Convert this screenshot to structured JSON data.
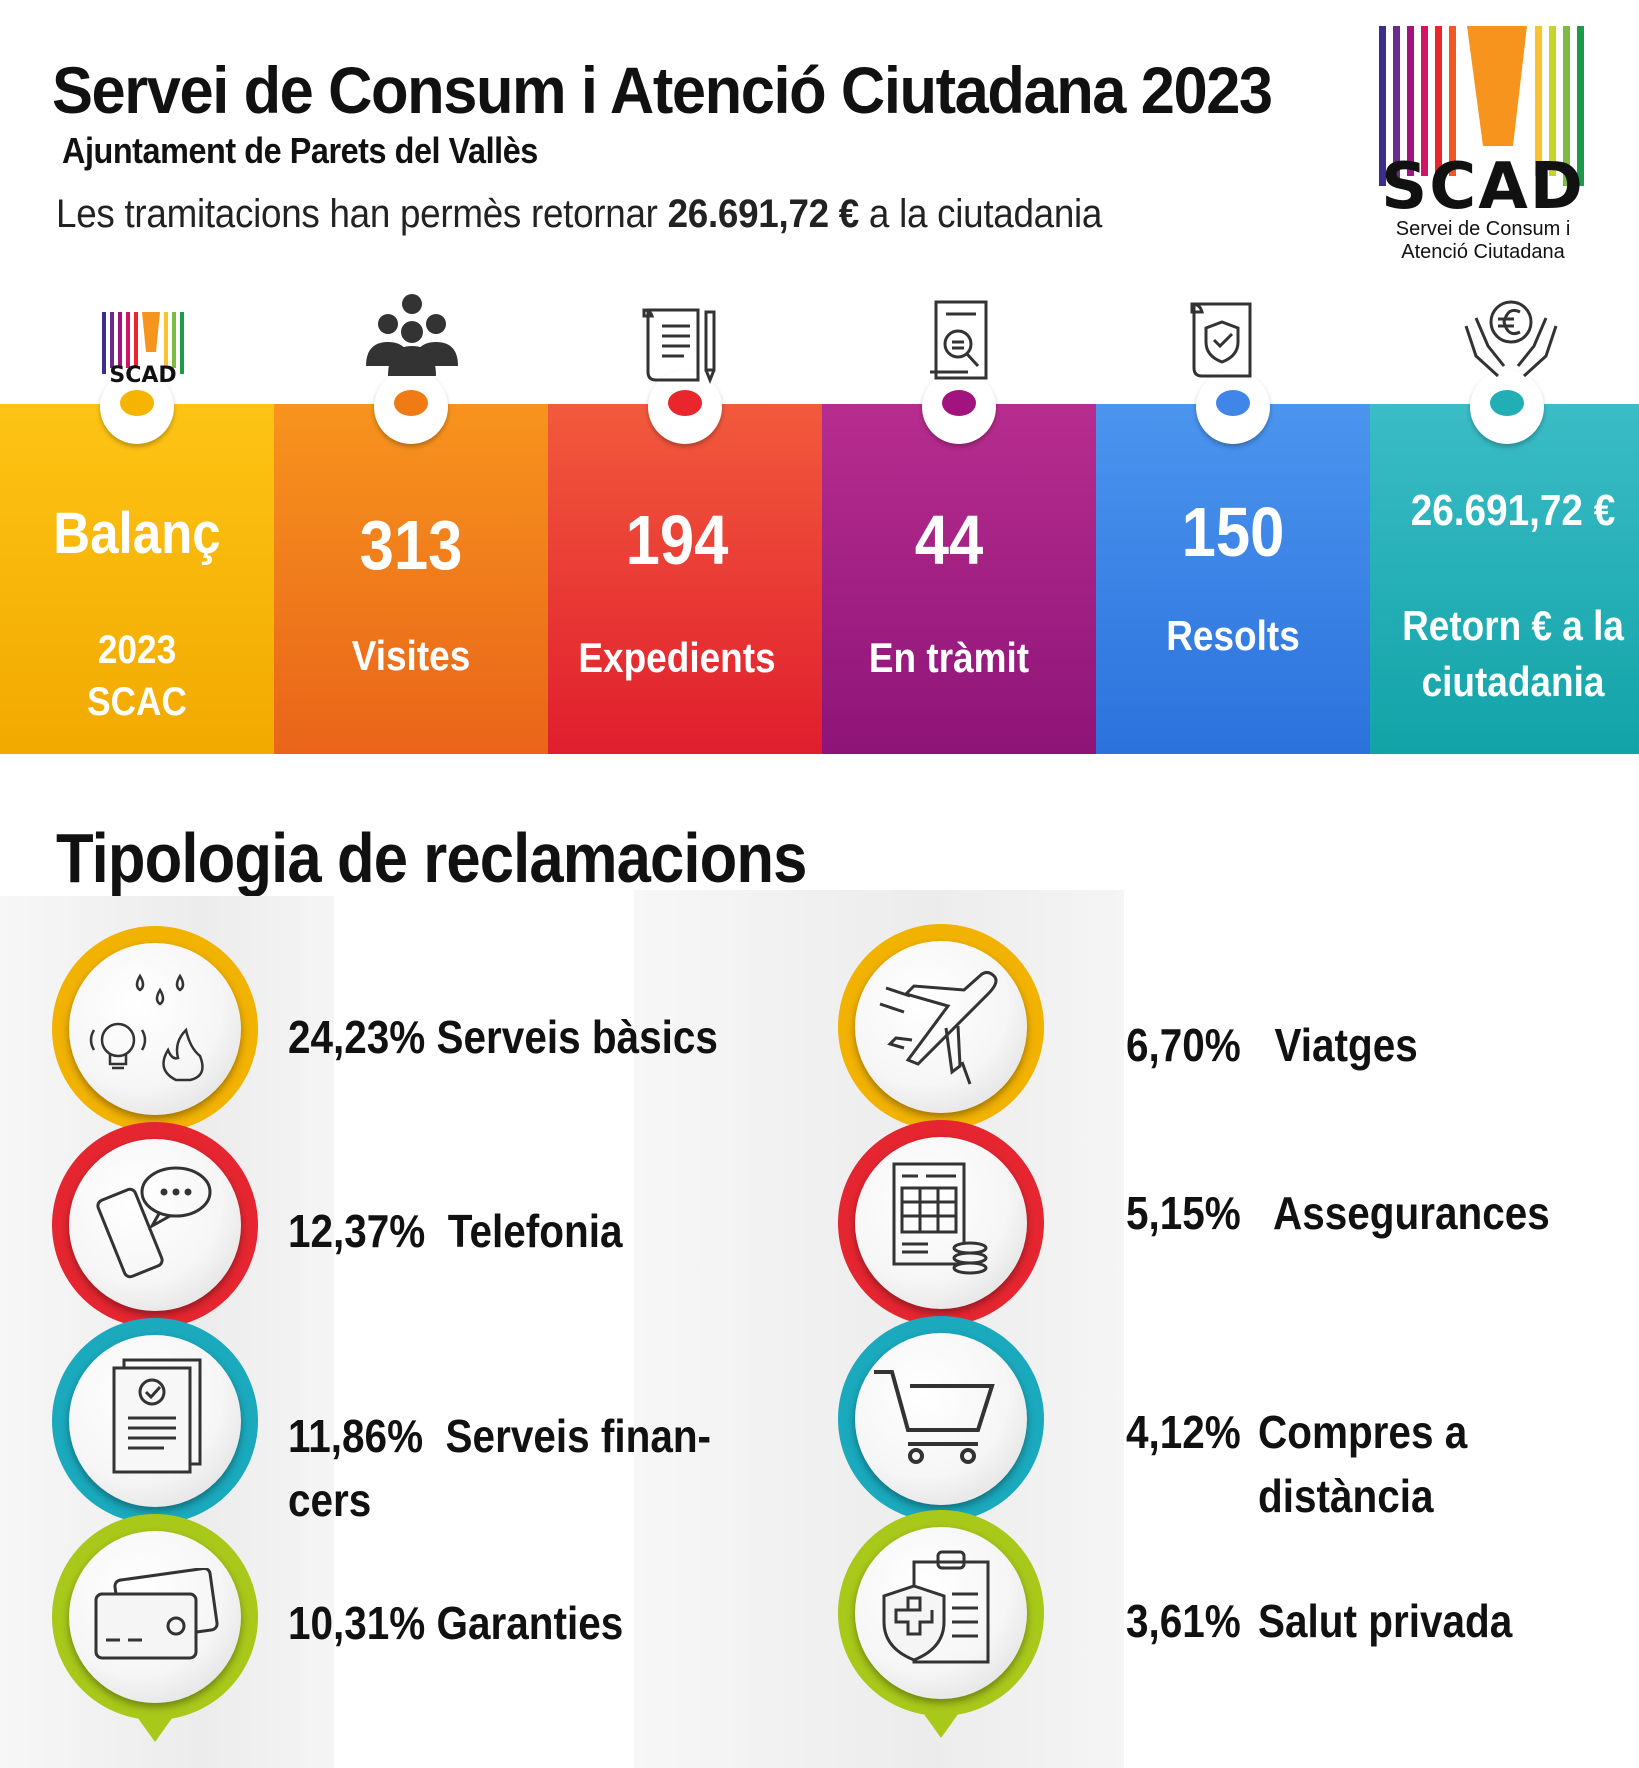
{
  "header": {
    "title": "Servei de Consum i Atenció Ciutadana 2023",
    "subtitle": "Ajuntament de Parets del Vallès",
    "summary_prefix": "Les tramitacions han permès retornar",
    "summary_amount": "26.691,72 €",
    "summary_suffix": "a la ciutadania"
  },
  "logo": {
    "text": "SCAD",
    "caption_line1": "Servei de Consum i",
    "caption_line2": "Atenció Ciutadana"
  },
  "stats": [
    {
      "value": "Balanç",
      "label_line1": "2023",
      "label_line2": "SCAC",
      "icon": "scad-logo-icon",
      "color": "#f4b400"
    },
    {
      "value": "313",
      "label_line1": "Visites",
      "label_line2": "",
      "icon": "people-icon",
      "color": "#f07a14"
    },
    {
      "value": "194",
      "label_line1": "Expedients",
      "label_line2": "",
      "icon": "document-pen-icon",
      "color": "#e8262c"
    },
    {
      "value": "44",
      "label_line1": "En tràmit",
      "label_line2": "",
      "icon": "document-search-icon",
      "color": "#a3137f"
    },
    {
      "value": "150",
      "label_line1": "Resolts",
      "label_line2": "",
      "icon": "document-shield-icon",
      "color": "#3f86e8"
    },
    {
      "value": "26.691,72 €",
      "label_line1": "Retorn € a la",
      "label_line2": "ciutadania",
      "icon": "hands-euro-icon",
      "color": "#21aeb4"
    }
  ],
  "section": {
    "title": "Tipologia de reclamacions"
  },
  "types_left": [
    {
      "percent": "24,23%",
      "label": "Serveis bàsics",
      "label2": "",
      "icon": "utilities-icon",
      "color": "#f2b200"
    },
    {
      "percent": "12,37%",
      "label": "Telefonia",
      "label2": "",
      "icon": "phone-chat-icon",
      "color": "#e52630"
    },
    {
      "percent": "11,86%",
      "label": "Serveis finan-",
      "label2": "cers",
      "icon": "financial-document-icon",
      "color": "#1aa9bd"
    },
    {
      "percent": "10,31%",
      "label": "Garanties",
      "label2": "",
      "icon": "cards-icon",
      "color": "#a8c81a"
    }
  ],
  "types_right": [
    {
      "percent": "6,70%",
      "label": "Viatges",
      "label2": "",
      "icon": "airplane-icon",
      "color": "#f2b200"
    },
    {
      "percent": "5,15%",
      "label": "Assegurances",
      "label2": "",
      "icon": "invoice-coins-icon",
      "color": "#e52630"
    },
    {
      "percent": "4,12%",
      "label": "Compres a",
      "label2": "distància",
      "icon": "shopping-cart-icon",
      "color": "#1aa9bd"
    },
    {
      "percent": "3,61%",
      "label": "Salut privada",
      "label2": "",
      "icon": "health-clipboard-icon",
      "color": "#a8c81a"
    }
  ]
}
